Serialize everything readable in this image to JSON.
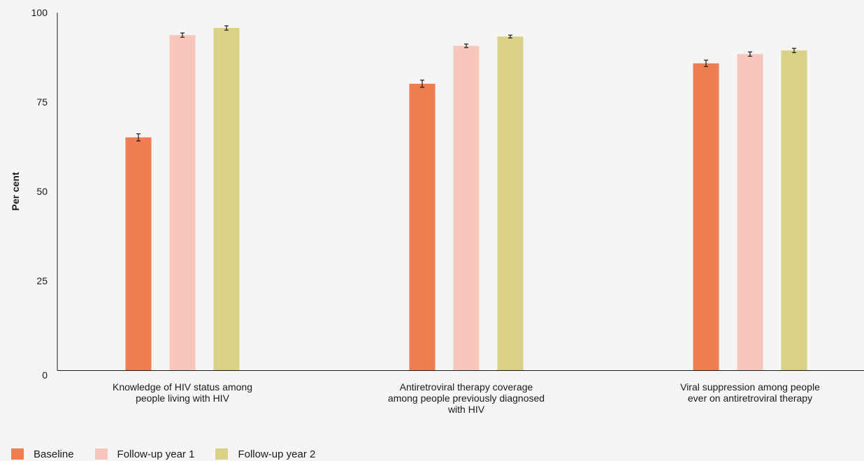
{
  "chart_data": {
    "type": "bar",
    "ylabel": "Per cent",
    "ylim": [
      0,
      100
    ],
    "yticks": [
      0,
      25,
      50,
      75,
      100
    ],
    "categories": [
      [
        "Knowledge of HIV status among",
        "people living with HIV"
      ],
      [
        "Antiretroviral therapy coverage",
        "among people previously diagnosed",
        "with HIV"
      ],
      [
        "Viral suppression among people",
        "ever on antiretroviral therapy"
      ]
    ],
    "series": [
      {
        "name": "Baseline",
        "color": "#f07c51",
        "values": [
          65.1,
          80.1,
          85.8
        ],
        "error": [
          1.0,
          1.0,
          0.9
        ]
      },
      {
        "name": "Follow-up year 1",
        "color": "#f8c6bb",
        "values": [
          93.7,
          90.7,
          88.4
        ],
        "error": [
          0.6,
          0.5,
          0.6
        ]
      },
      {
        "name": "Follow-up year 2",
        "color": "#d9d186",
        "values": [
          95.7,
          93.3,
          89.4
        ],
        "error": [
          0.6,
          0.4,
          0.6
        ]
      }
    ],
    "grid": false,
    "legend_position": "bottom-left"
  }
}
